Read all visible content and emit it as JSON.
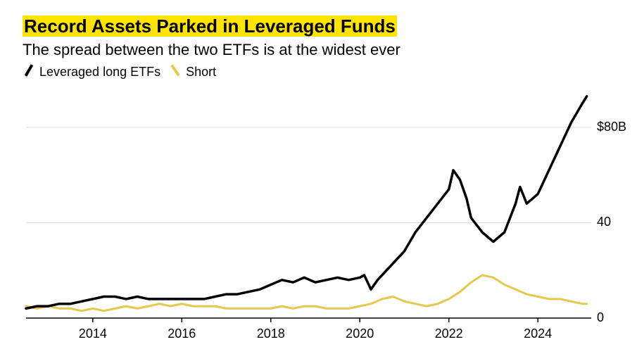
{
  "title_parts": {
    "p1": "Record Assets Parked in ",
    "p2": "Leveraged Funds"
  },
  "subtitle": "The spread between the two ETFs is at the widest ever",
  "legend": {
    "long": "Leveraged long ETFs",
    "short": "Short"
  },
  "chart": {
    "type": "line",
    "background_color": "#ffffff",
    "grid_color": "#d9d9d9",
    "axis_color": "#000000",
    "font_size_axis": 18,
    "xlim": [
      2012.5,
      2025.2
    ],
    "ylim": [
      0,
      95
    ],
    "x_ticks": [
      2014,
      2016,
      2018,
      2020,
      2022,
      2024
    ],
    "x_tick_labels": [
      "2014",
      "2016",
      "2018",
      "2020",
      "2022",
      "2024"
    ],
    "y_ticks": [
      0,
      40,
      80
    ],
    "y_tick_labels": [
      "0",
      "40",
      "$80B"
    ],
    "series": [
      {
        "name": "long",
        "color": "#000000",
        "line_width": 3.5,
        "data": [
          [
            2012.5,
            4
          ],
          [
            2012.75,
            5
          ],
          [
            2013.0,
            5
          ],
          [
            2013.25,
            6
          ],
          [
            2013.5,
            6
          ],
          [
            2013.75,
            7
          ],
          [
            2014.0,
            8
          ],
          [
            2014.25,
            9
          ],
          [
            2014.5,
            9
          ],
          [
            2014.75,
            8
          ],
          [
            2015.0,
            9
          ],
          [
            2015.25,
            8
          ],
          [
            2015.5,
            8
          ],
          [
            2015.75,
            8
          ],
          [
            2016.0,
            8
          ],
          [
            2016.25,
            8
          ],
          [
            2016.5,
            8
          ],
          [
            2016.75,
            9
          ],
          [
            2017.0,
            10
          ],
          [
            2017.25,
            10
          ],
          [
            2017.5,
            11
          ],
          [
            2017.75,
            12
          ],
          [
            2018.0,
            14
          ],
          [
            2018.25,
            16
          ],
          [
            2018.5,
            15
          ],
          [
            2018.75,
            17
          ],
          [
            2019.0,
            15
          ],
          [
            2019.25,
            16
          ],
          [
            2019.5,
            17
          ],
          [
            2019.75,
            16
          ],
          [
            2020.0,
            17
          ],
          [
            2020.1,
            18
          ],
          [
            2020.25,
            12
          ],
          [
            2020.4,
            16
          ],
          [
            2020.5,
            18
          ],
          [
            2020.75,
            23
          ],
          [
            2021.0,
            28
          ],
          [
            2021.25,
            36
          ],
          [
            2021.5,
            42
          ],
          [
            2021.75,
            48
          ],
          [
            2022.0,
            54
          ],
          [
            2022.1,
            62
          ],
          [
            2022.25,
            58
          ],
          [
            2022.4,
            50
          ],
          [
            2022.5,
            42
          ],
          [
            2022.75,
            36
          ],
          [
            2023.0,
            32
          ],
          [
            2023.25,
            36
          ],
          [
            2023.5,
            48
          ],
          [
            2023.6,
            55
          ],
          [
            2023.75,
            48
          ],
          [
            2024.0,
            52
          ],
          [
            2024.25,
            62
          ],
          [
            2024.5,
            72
          ],
          [
            2024.75,
            82
          ],
          [
            2025.0,
            90
          ],
          [
            2025.1,
            93
          ]
        ]
      },
      {
        "name": "short",
        "color": "#e5c84c",
        "line_width": 3.0,
        "data": [
          [
            2012.5,
            5
          ],
          [
            2012.75,
            4
          ],
          [
            2013.0,
            5
          ],
          [
            2013.25,
            4
          ],
          [
            2013.5,
            4
          ],
          [
            2013.75,
            3
          ],
          [
            2014.0,
            4
          ],
          [
            2014.25,
            3
          ],
          [
            2014.5,
            4
          ],
          [
            2014.75,
            5
          ],
          [
            2015.0,
            4
          ],
          [
            2015.25,
            5
          ],
          [
            2015.5,
            6
          ],
          [
            2015.75,
            5
          ],
          [
            2016.0,
            6
          ],
          [
            2016.25,
            5
          ],
          [
            2016.5,
            5
          ],
          [
            2016.75,
            5
          ],
          [
            2017.0,
            4
          ],
          [
            2017.25,
            4
          ],
          [
            2017.5,
            4
          ],
          [
            2017.75,
            4
          ],
          [
            2018.0,
            4
          ],
          [
            2018.25,
            5
          ],
          [
            2018.5,
            4
          ],
          [
            2018.75,
            5
          ],
          [
            2019.0,
            5
          ],
          [
            2019.25,
            4
          ],
          [
            2019.5,
            4
          ],
          [
            2019.75,
            4
          ],
          [
            2020.0,
            5
          ],
          [
            2020.25,
            6
          ],
          [
            2020.5,
            8
          ],
          [
            2020.75,
            9
          ],
          [
            2021.0,
            7
          ],
          [
            2021.25,
            6
          ],
          [
            2021.5,
            5
          ],
          [
            2021.75,
            6
          ],
          [
            2022.0,
            8
          ],
          [
            2022.25,
            11
          ],
          [
            2022.5,
            15
          ],
          [
            2022.75,
            18
          ],
          [
            2023.0,
            17
          ],
          [
            2023.25,
            14
          ],
          [
            2023.5,
            12
          ],
          [
            2023.75,
            10
          ],
          [
            2024.0,
            9
          ],
          [
            2024.25,
            8
          ],
          [
            2024.5,
            8
          ],
          [
            2024.75,
            7
          ],
          [
            2025.0,
            6
          ],
          [
            2025.1,
            6
          ]
        ]
      }
    ]
  }
}
